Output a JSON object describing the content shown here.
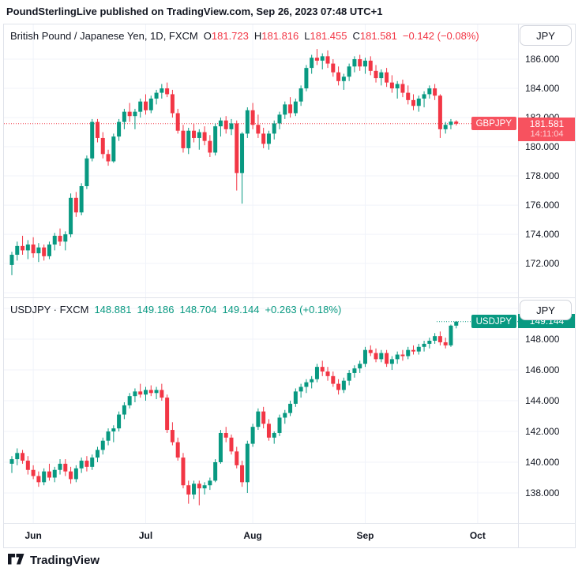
{
  "attribution": "PoundSterlingLive published on TradingView.com, Sep 26, 2023 07:48 UTC+1",
  "footer": {
    "brand": "TradingView"
  },
  "colors": {
    "up": "#089981",
    "down": "#f23645",
    "grid": "#f0f3fa",
    "frame": "#e0e3eb",
    "text": "#131722",
    "badge_red": "#f7525f",
    "badge_green": "#089981"
  },
  "chart_data": [
    {
      "type": "candlestick",
      "symbol": "GBPJPY",
      "title": "British Pound / Japanese Yen, 1D, FXCM",
      "legend_ohlc": [
        {
          "k": "O",
          "v": "181.723"
        },
        {
          "k": "H",
          "v": "181.816"
        },
        {
          "k": "L",
          "v": "181.455"
        },
        {
          "k": "C",
          "v": "181.581"
        }
      ],
      "change": "−0.142 (−0.08%)",
      "currency": "JPY",
      "price_label": {
        "symbol": "GBPJPY",
        "price": "181.581",
        "countdown": "14:11:04"
      },
      "series_color": "#f23645",
      "last_price": 181.581,
      "ylim": [
        169.68,
        188.38
      ],
      "yticks": [
        172,
        174,
        176,
        178,
        180,
        182,
        184,
        186
      ],
      "grid_prices": [
        170,
        172,
        174,
        176,
        178,
        180,
        182,
        184,
        186
      ],
      "xticks": [
        {
          "label": "Jun",
          "index": 4
        },
        {
          "label": "Jul",
          "index": 25
        },
        {
          "label": "Aug",
          "index": 45
        },
        {
          "label": "Sep",
          "index": 66
        },
        {
          "label": "Oct",
          "index": 87
        }
      ],
      "candles": [
        [
          171.9,
          172.8,
          171.2,
          172.6
        ],
        [
          172.6,
          173.5,
          172.2,
          173.2
        ],
        [
          173.2,
          173.9,
          172.6,
          172.9
        ],
        [
          172.9,
          173.6,
          172.3,
          173.3
        ],
        [
          173.3,
          173.8,
          172.4,
          172.7
        ],
        [
          172.7,
          173.4,
          172.1,
          173.1
        ],
        [
          173.1,
          173.3,
          172.2,
          172.5
        ],
        [
          172.5,
          173.5,
          172.3,
          173.3
        ],
        [
          173.3,
          174.1,
          172.9,
          173.9
        ],
        [
          173.9,
          174.4,
          173.2,
          173.5
        ],
        [
          173.5,
          174.2,
          172.9,
          174.0
        ],
        [
          174.0,
          176.8,
          173.8,
          176.5
        ],
        [
          176.5,
          176.9,
          175.2,
          175.5
        ],
        [
          175.5,
          177.5,
          175.3,
          177.3
        ],
        [
          177.3,
          179.4,
          177.1,
          179.2
        ],
        [
          179.2,
          181.9,
          179.0,
          181.7
        ],
        [
          181.7,
          181.9,
          180.3,
          180.6
        ],
        [
          180.6,
          181.0,
          179.2,
          179.5
        ],
        [
          179.5,
          179.8,
          178.7,
          179.0
        ],
        [
          179.0,
          180.9,
          178.9,
          180.7
        ],
        [
          180.7,
          181.9,
          180.4,
          181.7
        ],
        [
          181.7,
          182.6,
          181.2,
          182.4
        ],
        [
          182.4,
          183.0,
          181.7,
          182.1
        ],
        [
          182.1,
          182.6,
          181.2,
          182.4
        ],
        [
          182.4,
          183.3,
          182.0,
          183.1
        ],
        [
          183.1,
          183.6,
          182.2,
          182.5
        ],
        [
          182.5,
          183.5,
          182.3,
          183.3
        ],
        [
          183.3,
          183.9,
          182.9,
          183.7
        ],
        [
          183.7,
          184.3,
          183.3,
          184.0
        ],
        [
          184.0,
          184.4,
          183.4,
          183.6
        ],
        [
          183.6,
          183.9,
          182.0,
          182.3
        ],
        [
          182.3,
          182.6,
          180.9,
          181.1
        ],
        [
          181.1,
          181.5,
          179.6,
          179.9
        ],
        [
          179.9,
          181.3,
          179.5,
          181.1
        ],
        [
          181.1,
          181.6,
          180.3,
          180.6
        ],
        [
          180.6,
          181.2,
          179.8,
          181.0
        ],
        [
          181.0,
          181.4,
          180.1,
          180.4
        ],
        [
          180.4,
          180.8,
          179.3,
          179.6
        ],
        [
          179.6,
          181.6,
          179.4,
          181.4
        ],
        [
          181.4,
          182.0,
          180.7,
          181.8
        ],
        [
          181.8,
          182.1,
          180.9,
          181.2
        ],
        [
          181.2,
          181.9,
          180.8,
          181.6
        ],
        [
          181.6,
          181.8,
          177.0,
          178.2
        ],
        [
          178.2,
          181.0,
          176.1,
          180.9
        ],
        [
          180.9,
          182.7,
          180.6,
          182.5
        ],
        [
          182.5,
          183.0,
          181.2,
          181.5
        ],
        [
          181.5,
          182.2,
          180.6,
          180.9
        ],
        [
          180.9,
          181.3,
          179.9,
          180.2
        ],
        [
          180.2,
          181.1,
          179.8,
          180.9
        ],
        [
          180.9,
          181.8,
          180.5,
          181.6
        ],
        [
          181.6,
          182.4,
          181.2,
          182.2
        ],
        [
          182.2,
          183.1,
          181.9,
          182.9
        ],
        [
          182.9,
          183.4,
          182.0,
          182.3
        ],
        [
          182.3,
          183.3,
          182.1,
          183.1
        ],
        [
          183.1,
          184.2,
          182.8,
          184.0
        ],
        [
          184.0,
          185.6,
          183.8,
          185.4
        ],
        [
          185.4,
          186.3,
          185.0,
          186.1
        ],
        [
          186.1,
          186.7,
          185.6,
          185.9
        ],
        [
          185.9,
          186.4,
          185.3,
          186.2
        ],
        [
          186.2,
          186.6,
          185.4,
          185.7
        ],
        [
          185.7,
          186.0,
          184.8,
          185.1
        ],
        [
          185.1,
          185.5,
          184.2,
          184.5
        ],
        [
          184.5,
          185.0,
          183.9,
          184.8
        ],
        [
          184.8,
          185.7,
          184.5,
          185.5
        ],
        [
          185.5,
          186.2,
          185.1,
          186.0
        ],
        [
          186.0,
          186.3,
          185.2,
          185.5
        ],
        [
          185.5,
          186.1,
          185.0,
          185.9
        ],
        [
          185.9,
          186.2,
          184.9,
          185.2
        ],
        [
          185.2,
          185.6,
          184.4,
          184.7
        ],
        [
          184.7,
          185.3,
          184.2,
          185.1
        ],
        [
          185.1,
          185.4,
          184.1,
          184.4
        ],
        [
          184.4,
          184.9,
          183.7,
          184.0
        ],
        [
          184.0,
          184.5,
          183.3,
          184.3
        ],
        [
          184.3,
          184.6,
          183.4,
          183.7
        ],
        [
          183.7,
          184.2,
          182.9,
          183.2
        ],
        [
          183.2,
          183.6,
          182.5,
          182.8
        ],
        [
          182.8,
          183.5,
          182.4,
          183.3
        ],
        [
          183.3,
          183.8,
          182.7,
          183.6
        ],
        [
          183.6,
          184.2,
          183.3,
          184.0
        ],
        [
          184.0,
          184.3,
          183.2,
          183.5
        ],
        [
          183.5,
          183.6,
          180.6,
          181.2
        ],
        [
          181.2,
          181.7,
          180.9,
          181.5
        ],
        [
          181.5,
          181.9,
          181.2,
          181.72
        ],
        [
          181.723,
          181.816,
          181.455,
          181.581
        ]
      ]
    },
    {
      "type": "candlestick",
      "symbol": "USDJPY",
      "title": "USDJPY · FXCM",
      "legend_values": [
        "148.881",
        "149.186",
        "148.704",
        "149.144"
      ],
      "change": "+0.263 (+0.18%)",
      "currency": "JPY",
      "price_label": {
        "symbol": "USDJPY",
        "price": "149.144"
      },
      "series_color": "#089981",
      "last_price": 149.144,
      "ylim": [
        136.05,
        150.67
      ],
      "yticks": [
        138,
        140,
        142,
        144,
        146,
        148
      ],
      "grid_prices": [
        138,
        140,
        142,
        144,
        146,
        148,
        150
      ],
      "xticks": [
        {
          "label": "Jun",
          "index": 4
        },
        {
          "label": "Jul",
          "index": 25
        },
        {
          "label": "Aug",
          "index": 45
        },
        {
          "label": "Sep",
          "index": 66
        },
        {
          "label": "Oct",
          "index": 87
        }
      ],
      "candles": [
        [
          139.9,
          140.4,
          139.3,
          140.2
        ],
        [
          140.2,
          140.9,
          139.8,
          140.6
        ],
        [
          140.6,
          140.8,
          139.9,
          140.1
        ],
        [
          140.1,
          140.4,
          139.2,
          139.5
        ],
        [
          139.5,
          139.8,
          138.9,
          139.1
        ],
        [
          139.1,
          139.4,
          138.4,
          138.7
        ],
        [
          138.7,
          139.6,
          138.5,
          139.4
        ],
        [
          139.4,
          139.9,
          138.8,
          139.0
        ],
        [
          139.0,
          139.7,
          138.7,
          139.5
        ],
        [
          139.5,
          140.2,
          139.2,
          139.9
        ],
        [
          139.9,
          140.2,
          139.1,
          139.4
        ],
        [
          139.4,
          139.7,
          138.6,
          138.9
        ],
        [
          138.9,
          139.8,
          138.7,
          139.6
        ],
        [
          139.6,
          140.3,
          139.3,
          140.1
        ],
        [
          140.1,
          140.4,
          139.4,
          139.7
        ],
        [
          139.7,
          140.5,
          139.5,
          140.3
        ],
        [
          140.3,
          141.0,
          140.0,
          140.8
        ],
        [
          140.8,
          141.6,
          140.5,
          141.4
        ],
        [
          141.4,
          142.2,
          141.1,
          142.0
        ],
        [
          142.0,
          142.4,
          141.3,
          142.2
        ],
        [
          142.2,
          143.3,
          142.0,
          143.1
        ],
        [
          143.1,
          143.9,
          142.8,
          143.7
        ],
        [
          143.7,
          144.5,
          143.5,
          144.3
        ],
        [
          144.3,
          144.8,
          143.9,
          144.6
        ],
        [
          144.6,
          145.1,
          144.2,
          144.4
        ],
        [
          144.4,
          144.9,
          144.0,
          144.7
        ],
        [
          144.7,
          145.0,
          144.3,
          144.5
        ],
        [
          144.5,
          144.9,
          144.1,
          144.7
        ],
        [
          144.7,
          145.1,
          144.0,
          144.2
        ],
        [
          144.2,
          144.4,
          141.9,
          142.1
        ],
        [
          142.1,
          142.6,
          141.1,
          141.3
        ],
        [
          141.3,
          141.6,
          140.1,
          140.3
        ],
        [
          140.3,
          140.6,
          138.3,
          138.5
        ],
        [
          138.5,
          138.8,
          137.3,
          137.9
        ],
        [
          137.9,
          138.8,
          137.6,
          138.6
        ],
        [
          138.6,
          138.8,
          137.2,
          138.3
        ],
        [
          138.3,
          138.7,
          137.9,
          138.5
        ],
        [
          138.5,
          139.0,
          138.2,
          138.8
        ],
        [
          138.8,
          140.2,
          138.7,
          140.0
        ],
        [
          140.0,
          142.1,
          139.9,
          141.9
        ],
        [
          141.9,
          142.3,
          141.3,
          141.6
        ],
        [
          141.6,
          141.8,
          140.5,
          140.7
        ],
        [
          140.7,
          141.0,
          139.6,
          139.8
        ],
        [
          139.8,
          140.1,
          138.4,
          138.7
        ],
        [
          138.7,
          141.4,
          138.0,
          141.2
        ],
        [
          141.2,
          142.5,
          141.0,
          142.3
        ],
        [
          142.3,
          143.5,
          142.1,
          143.3
        ],
        [
          143.3,
          143.6,
          142.2,
          142.5
        ],
        [
          142.5,
          142.8,
          141.4,
          141.6
        ],
        [
          141.6,
          142.0,
          141.2,
          141.9
        ],
        [
          141.9,
          143.1,
          141.7,
          142.9
        ],
        [
          142.9,
          143.4,
          142.5,
          143.2
        ],
        [
          143.2,
          144.0,
          143.0,
          143.8
        ],
        [
          143.8,
          144.8,
          143.6,
          144.6
        ],
        [
          144.6,
          145.1,
          144.2,
          144.9
        ],
        [
          144.9,
          145.4,
          144.5,
          145.2
        ],
        [
          145.2,
          145.6,
          144.8,
          145.4
        ],
        [
          145.4,
          146.4,
          145.2,
          146.2
        ],
        [
          146.2,
          146.6,
          145.6,
          145.9
        ],
        [
          145.9,
          146.2,
          145.3,
          145.6
        ],
        [
          145.6,
          145.9,
          144.9,
          145.1
        ],
        [
          145.1,
          145.4,
          144.4,
          144.7
        ],
        [
          144.7,
          145.5,
          144.5,
          145.3
        ],
        [
          145.3,
          146.0,
          145.0,
          145.8
        ],
        [
          145.8,
          146.3,
          145.5,
          146.1
        ],
        [
          146.1,
          146.6,
          145.8,
          146.4
        ],
        [
          146.4,
          147.5,
          146.2,
          147.3
        ],
        [
          147.3,
          147.6,
          146.9,
          147.1
        ],
        [
          147.1,
          147.4,
          146.5,
          146.7
        ],
        [
          146.7,
          147.3,
          146.5,
          147.1
        ],
        [
          147.1,
          147.3,
          146.2,
          146.4
        ],
        [
          146.4,
          146.9,
          146.0,
          146.7
        ],
        [
          146.7,
          147.2,
          146.4,
          147.0
        ],
        [
          147.0,
          147.3,
          146.6,
          146.9
        ],
        [
          146.9,
          147.5,
          146.7,
          147.3
        ],
        [
          147.3,
          147.6,
          147.0,
          147.2
        ],
        [
          147.2,
          147.7,
          147.0,
          147.5
        ],
        [
          147.5,
          147.9,
          147.2,
          147.7
        ],
        [
          147.7,
          148.1,
          147.4,
          147.9
        ],
        [
          147.9,
          148.4,
          147.7,
          148.2
        ],
        [
          148.2,
          148.5,
          147.6,
          147.8
        ],
        [
          147.8,
          148.1,
          147.4,
          147.6
        ],
        [
          147.6,
          148.95,
          147.5,
          148.881
        ],
        [
          148.881,
          149.186,
          148.704,
          149.144
        ]
      ]
    }
  ]
}
